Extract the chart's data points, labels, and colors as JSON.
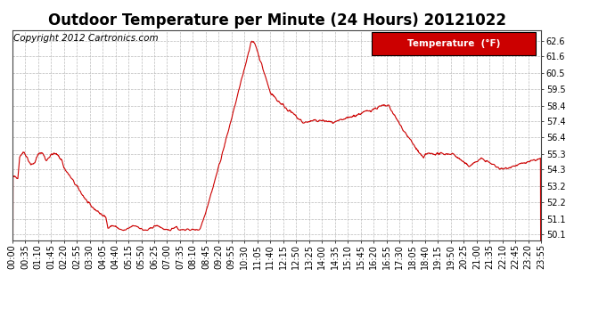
{
  "title": "Outdoor Temperature per Minute (24 Hours) 20121022",
  "copyright_text": "Copyright 2012 Cartronics.com",
  "legend_label": "Temperature  (°F)",
  "legend_bg": "#cc0000",
  "legend_text_color": "#ffffff",
  "line_color": "#cc0000",
  "bg_color": "#ffffff",
  "plot_bg_color": "#ffffff",
  "grid_color": "#bbbbbb",
  "yticks": [
    50.1,
    51.1,
    52.2,
    53.2,
    54.3,
    55.3,
    56.4,
    57.4,
    58.4,
    59.5,
    60.5,
    61.6,
    62.6
  ],
  "ylim": [
    49.7,
    63.3
  ],
  "xtick_labels": [
    "00:00",
    "00:35",
    "01:10",
    "01:45",
    "02:20",
    "02:55",
    "03:30",
    "04:05",
    "04:40",
    "05:15",
    "05:50",
    "06:25",
    "07:00",
    "07:35",
    "08:10",
    "08:45",
    "09:20",
    "09:55",
    "10:30",
    "11:05",
    "11:40",
    "12:15",
    "12:50",
    "13:25",
    "14:00",
    "14:35",
    "15:10",
    "15:45",
    "16:20",
    "16:55",
    "17:30",
    "18:05",
    "18:40",
    "19:15",
    "19:50",
    "20:25",
    "21:00",
    "21:35",
    "22:10",
    "22:45",
    "23:20",
    "23:55"
  ],
  "title_fontsize": 12,
  "tick_fontsize": 7,
  "copyright_fontsize": 7.5
}
